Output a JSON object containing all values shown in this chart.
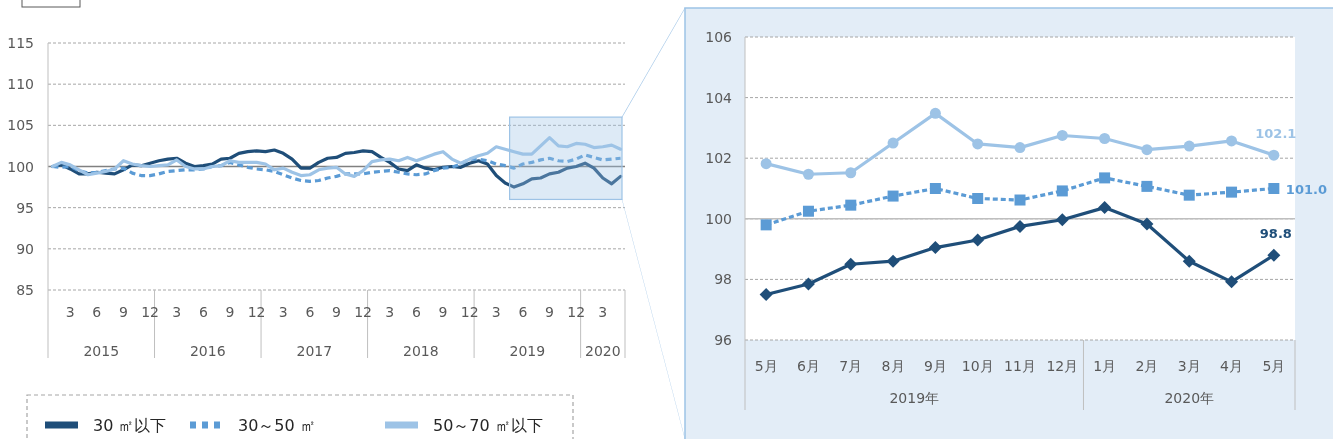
{
  "chart_data": [
    {
      "type": "line",
      "categories": [
        null,
        null,
        "3",
        null,
        null,
        "6",
        null,
        null,
        "9",
        null,
        null,
        "12",
        null,
        null,
        "3",
        null,
        null,
        "6",
        null,
        null,
        "9",
        null,
        null,
        "12",
        null,
        null,
        "3",
        null,
        null,
        "6",
        null,
        null,
        "9",
        null,
        null,
        "12",
        null,
        null,
        "3",
        null,
        null,
        "6",
        null,
        null,
        "9",
        null,
        null,
        "12",
        null,
        null,
        "3",
        null,
        null,
        "6",
        null,
        null,
        "9",
        null,
        null,
        "12",
        null,
        null,
        "3",
        null,
        null
      ],
      "annotations": [
        "2015",
        "2016",
        "2017",
        "2018",
        "2019",
        "2020"
      ],
      "ylim": [
        85,
        115
      ],
      "yticks": [
        85,
        90,
        95,
        100,
        105,
        110,
        115
      ],
      "grid": "y",
      "legend": "bottom",
      "ref_lines": [
        {
          "axis": "y",
          "value": 100,
          "color": "#808080"
        }
      ],
      "series": [
        {
          "name": "30 ㎡以下",
          "color": "#1f4e79",
          "line_style": "solid",
          "values": [
            100,
            100.2,
            99.7,
            99.1,
            99.1,
            99.3,
            99.2,
            99.1,
            99.6,
            100.2,
            100.1,
            100.4,
            100.7,
            100.9,
            101.0,
            100.4,
            100.0,
            100.1,
            100.3,
            100.9,
            101.0,
            101.6,
            101.8,
            101.9,
            101.8,
            102.0,
            101.6,
            100.9,
            99.8,
            99.8,
            100.5,
            101.0,
            101.1,
            101.6,
            101.7,
            101.9,
            101.8,
            101.1,
            100.5,
            99.7,
            99.5,
            100.2,
            99.8,
            99.6,
            99.9,
            100.0,
            99.9,
            100.4,
            100.7,
            100.3,
            98.9,
            98.0,
            97.5,
            97.9,
            98.5,
            98.6,
            99.1,
            99.3,
            99.8,
            100.0,
            100.4,
            99.8,
            98.6,
            97.9,
            98.8
          ]
        },
        {
          "name": "30～50 ㎡",
          "color": "#5b9bd5",
          "line_style": "dashed",
          "values": [
            100,
            99.9,
            100,
            99.5,
            99.2,
            99.3,
            99.5,
            99.7,
            99.8,
            99.2,
            98.9,
            98.9,
            99.1,
            99.4,
            99.5,
            99.6,
            99.6,
            99.7,
            100.0,
            100.1,
            100.5,
            100.2,
            99.9,
            99.7,
            99.6,
            99.4,
            99.0,
            98.6,
            98.3,
            98.2,
            98.3,
            98.6,
            98.8,
            99.1,
            99.1,
            99.1,
            99.3,
            99.4,
            99.5,
            99.3,
            99.1,
            99.0,
            99.1,
            99.5,
            99.8,
            99.9,
            100.3,
            100.9,
            100.9,
            100.7,
            100.3,
            100.1,
            99.8,
            100.3,
            100.5,
            100.8,
            101.0,
            100.7,
            100.6,
            100.9,
            101.4,
            101.1,
            100.8,
            100.9,
            101.0
          ]
        },
        {
          "name": "50～70 ㎡以下",
          "color": "#9dc3e6",
          "line_style": "solid",
          "values": [
            100,
            100.5,
            100.2,
            99.6,
            99.0,
            99.2,
            99.4,
            99.7,
            100.7,
            100.3,
            100.1,
            100.0,
            100.1,
            100.2,
            100.8,
            100.0,
            99.7,
            99.7,
            100.0,
            100.1,
            100.7,
            100.5,
            100.5,
            100.5,
            100.3,
            99.6,
            99.8,
            99.3,
            98.9,
            99.0,
            99.6,
            99.8,
            99.9,
            99.1,
            98.8,
            99.5,
            100.6,
            100.8,
            100.9,
            100.7,
            101.1,
            100.7,
            101.1,
            101.5,
            101.8,
            100.9,
            100.4,
            100.9,
            101.3,
            101.6,
            102.4,
            102.1,
            101.8,
            101.5,
            101.5,
            102.5,
            103.5,
            102.5,
            102.4,
            102.8,
            102.7,
            102.3,
            102.4,
            102.6,
            102.1
          ]
        }
      ]
    },
    {
      "type": "line",
      "categories": [
        "5月",
        "6月",
        "7月",
        "8月",
        "9月",
        "10月",
        "11月",
        "12月",
        "1月",
        "2月",
        "3月",
        "4月",
        "5月"
      ],
      "annotations": [
        "2019年",
        "2020年"
      ],
      "ylim": [
        96,
        106
      ],
      "yticks": [
        96,
        98,
        100,
        102,
        104,
        106
      ],
      "grid": "y",
      "ref_lines": [
        {
          "axis": "y",
          "value": 100,
          "color": "#bfbfbf"
        }
      ],
      "series": [
        {
          "color": "#1f4e79",
          "line_style": "solid",
          "marker": "diamond",
          "values": [
            97.5,
            97.85,
            98.5,
            98.6,
            99.05,
            99.3,
            99.75,
            99.97,
            100.37,
            99.83,
            98.6,
            97.92,
            98.8
          ],
          "value_labels": [
            null,
            null,
            null,
            null,
            null,
            null,
            null,
            null,
            null,
            null,
            null,
            null,
            "98.8"
          ]
        },
        {
          "color": "#5b9bd5",
          "line_style": "dashed",
          "marker": "square",
          "values": [
            99.8,
            100.25,
            100.45,
            100.75,
            101.0,
            100.67,
            100.62,
            100.92,
            101.35,
            101.07,
            100.78,
            100.88,
            101.0
          ],
          "value_labels": [
            null,
            null,
            null,
            null,
            null,
            null,
            null,
            null,
            null,
            null,
            null,
            null,
            "101.0"
          ]
        },
        {
          "color": "#9dc3e6",
          "line_style": "solid",
          "marker": "circle",
          "values": [
            101.82,
            101.47,
            101.52,
            102.5,
            103.48,
            102.47,
            102.35,
            102.75,
            102.65,
            102.28,
            102.4,
            102.57,
            102.1
          ],
          "value_labels": [
            null,
            null,
            null,
            null,
            null,
            null,
            null,
            null,
            null,
            null,
            null,
            null,
            "102.1"
          ]
        }
      ]
    }
  ]
}
